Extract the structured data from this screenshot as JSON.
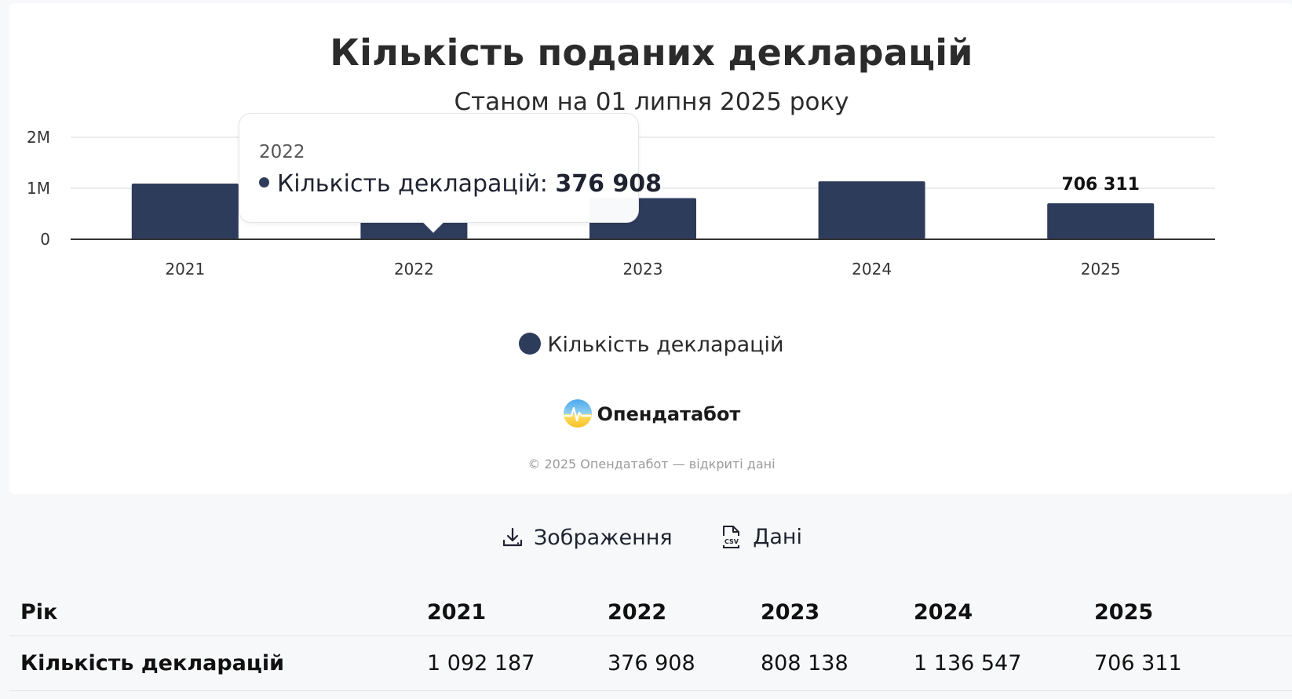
{
  "chart_data": {
    "type": "bar",
    "title": "Кількість поданих декларацій",
    "subtitle": "Станом на 01 липня 2025 року",
    "categories": [
      "2021",
      "2022",
      "2023",
      "2024",
      "2025"
    ],
    "series": [
      {
        "name": "Кількість декларацій",
        "values": [
          1092187,
          376908,
          808138,
          1136547,
          706311
        ]
      }
    ],
    "ylim": [
      0,
      2000000
    ],
    "y_ticks": [
      0,
      1000000,
      2000000
    ],
    "y_tick_labels": [
      "0",
      "1M",
      "2M"
    ],
    "data_labels": [
      {
        "category": "2025",
        "text": "706 311"
      }
    ],
    "grid": true,
    "legend_position": "bottom",
    "xlabel": "",
    "ylabel": "",
    "colors": {
      "bar": "#2e3c5c",
      "axis": "#333333",
      "grid": "#e6e6e6"
    }
  },
  "tooltip": {
    "year": "2022",
    "series_label": "Кількість декларацій:",
    "value": "376 908"
  },
  "legend": {
    "label": "Кількість декларацій"
  },
  "brand": {
    "name": "Опендатабот",
    "icon": "opendatabot-logo-icon"
  },
  "copyright": "© 2025 Опендатабот — відкриті дані",
  "actions": {
    "image_label": "Зображення",
    "image_icon": "download-icon",
    "data_label": "Дані",
    "data_icon": "csv-file-icon"
  },
  "table": {
    "headers": [
      "Рік",
      "2021",
      "2022",
      "2023",
      "2024",
      "2025"
    ],
    "rows": [
      [
        "Кількість декларацій",
        "1 092 187",
        "376 908",
        "808 138",
        "1 136 547",
        "706 311"
      ]
    ]
  }
}
